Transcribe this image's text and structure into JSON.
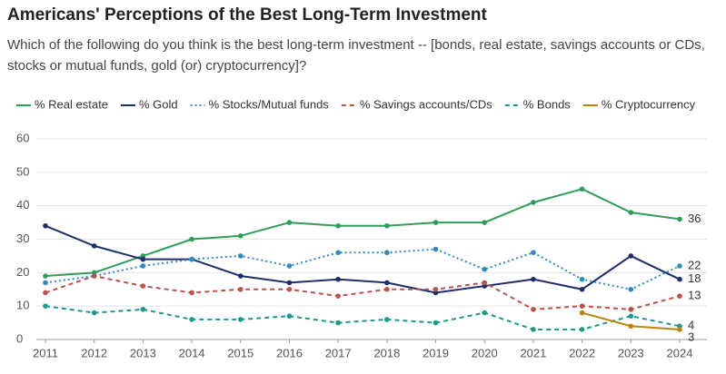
{
  "chart_data": {
    "type": "line",
    "title": "Americans' Perceptions of the Best Long-Term Investment",
    "subtitle": "Which of the following do you think is the best long-term investment -- [bonds, real estate, savings accounts or CDs, stocks or mutual funds, gold (or) cryptocurrency]?",
    "x": [
      2011,
      2012,
      2013,
      2014,
      2015,
      2016,
      2017,
      2018,
      2019,
      2020,
      2021,
      2022,
      2023,
      2024
    ],
    "xlim": [
      2011,
      2024
    ],
    "xticks": [
      2011,
      2012,
      2013,
      2014,
      2015,
      2016,
      2017,
      2018,
      2019,
      2020,
      2021,
      2022,
      2023,
      2024
    ],
    "ylim": [
      0,
      60
    ],
    "yticks": [
      0,
      10,
      20,
      30,
      40,
      50,
      60
    ],
    "grid": true,
    "legend": "top",
    "series": [
      {
        "name": "% Real estate",
        "color": "#2e9e5b",
        "line_style": "solid",
        "values": [
          19,
          20,
          25,
          30,
          31,
          35,
          34,
          34,
          35,
          35,
          41,
          45,
          38,
          36
        ]
      },
      {
        "name": "% Gold",
        "color": "#1f2d6b",
        "line_style": "solid",
        "values": [
          34,
          28,
          24,
          24,
          19,
          17,
          18,
          17,
          14,
          16,
          18,
          15,
          25,
          18
        ]
      },
      {
        "name": "% Stocks/Mutual funds",
        "color": "#2e8bc0",
        "line_style": "dotted",
        "values": [
          17,
          19,
          22,
          24,
          25,
          22,
          26,
          26,
          27,
          21,
          26,
          18,
          15,
          22
        ]
      },
      {
        "name": "% Savings accounts/CDs",
        "color": "#c0504d",
        "line_style": "dashed",
        "values": [
          14,
          19,
          16,
          14,
          15,
          15,
          13,
          15,
          15,
          17,
          9,
          10,
          9,
          13
        ]
      },
      {
        "name": "% Bonds",
        "color": "#1a9b8c",
        "line_style": "dashed",
        "values": [
          10,
          8,
          9,
          6,
          6,
          7,
          5,
          6,
          5,
          8,
          3,
          3,
          7,
          4
        ]
      },
      {
        "name": "% Cryptocurrency",
        "color": "#b8860b",
        "line_style": "solid",
        "values": [
          null,
          null,
          null,
          null,
          null,
          null,
          null,
          null,
          null,
          null,
          null,
          8,
          4,
          3
        ]
      }
    ]
  }
}
